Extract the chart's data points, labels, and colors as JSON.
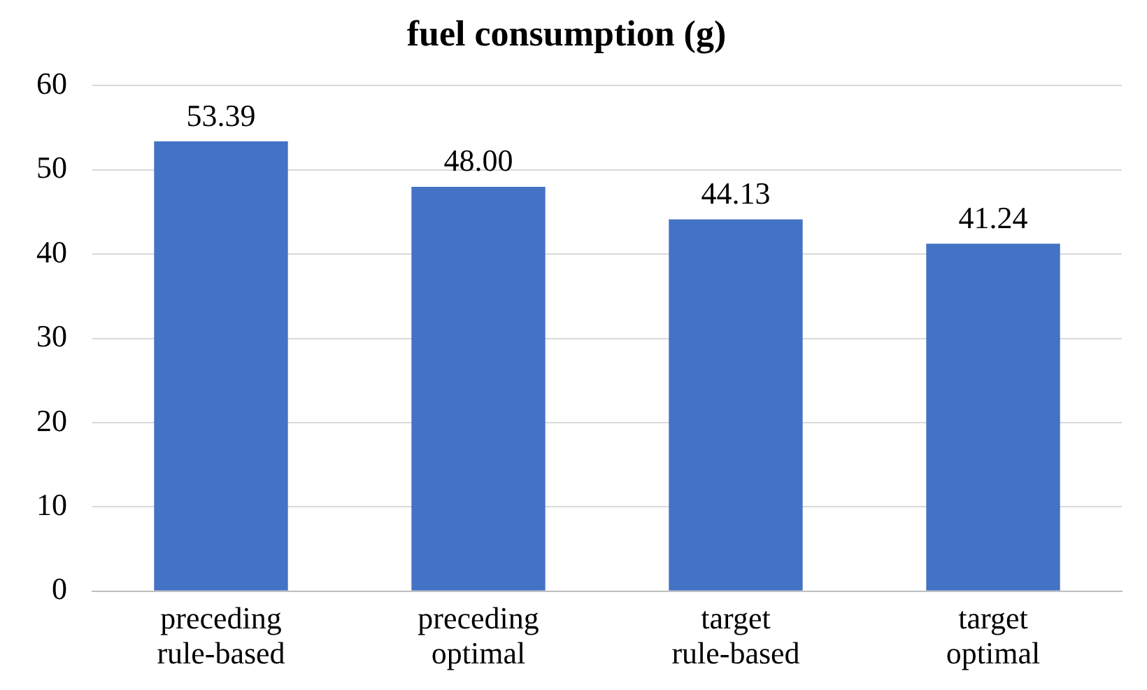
{
  "chart_data": {
    "type": "bar",
    "title": "fuel consumption (g)",
    "categories": [
      "preceding rule-based",
      "preceding optimal",
      "target rule-based",
      "target optimal"
    ],
    "values": [
      53.39,
      48.0,
      44.13,
      41.24
    ],
    "value_labels": [
      "53.39",
      "48.00",
      "44.13",
      "41.24"
    ],
    "color": "#4472c4",
    "ylim": [
      0,
      60
    ],
    "yticks": [
      0,
      10,
      20,
      30,
      40,
      50,
      60
    ],
    "grid": "y",
    "legend": false
  }
}
